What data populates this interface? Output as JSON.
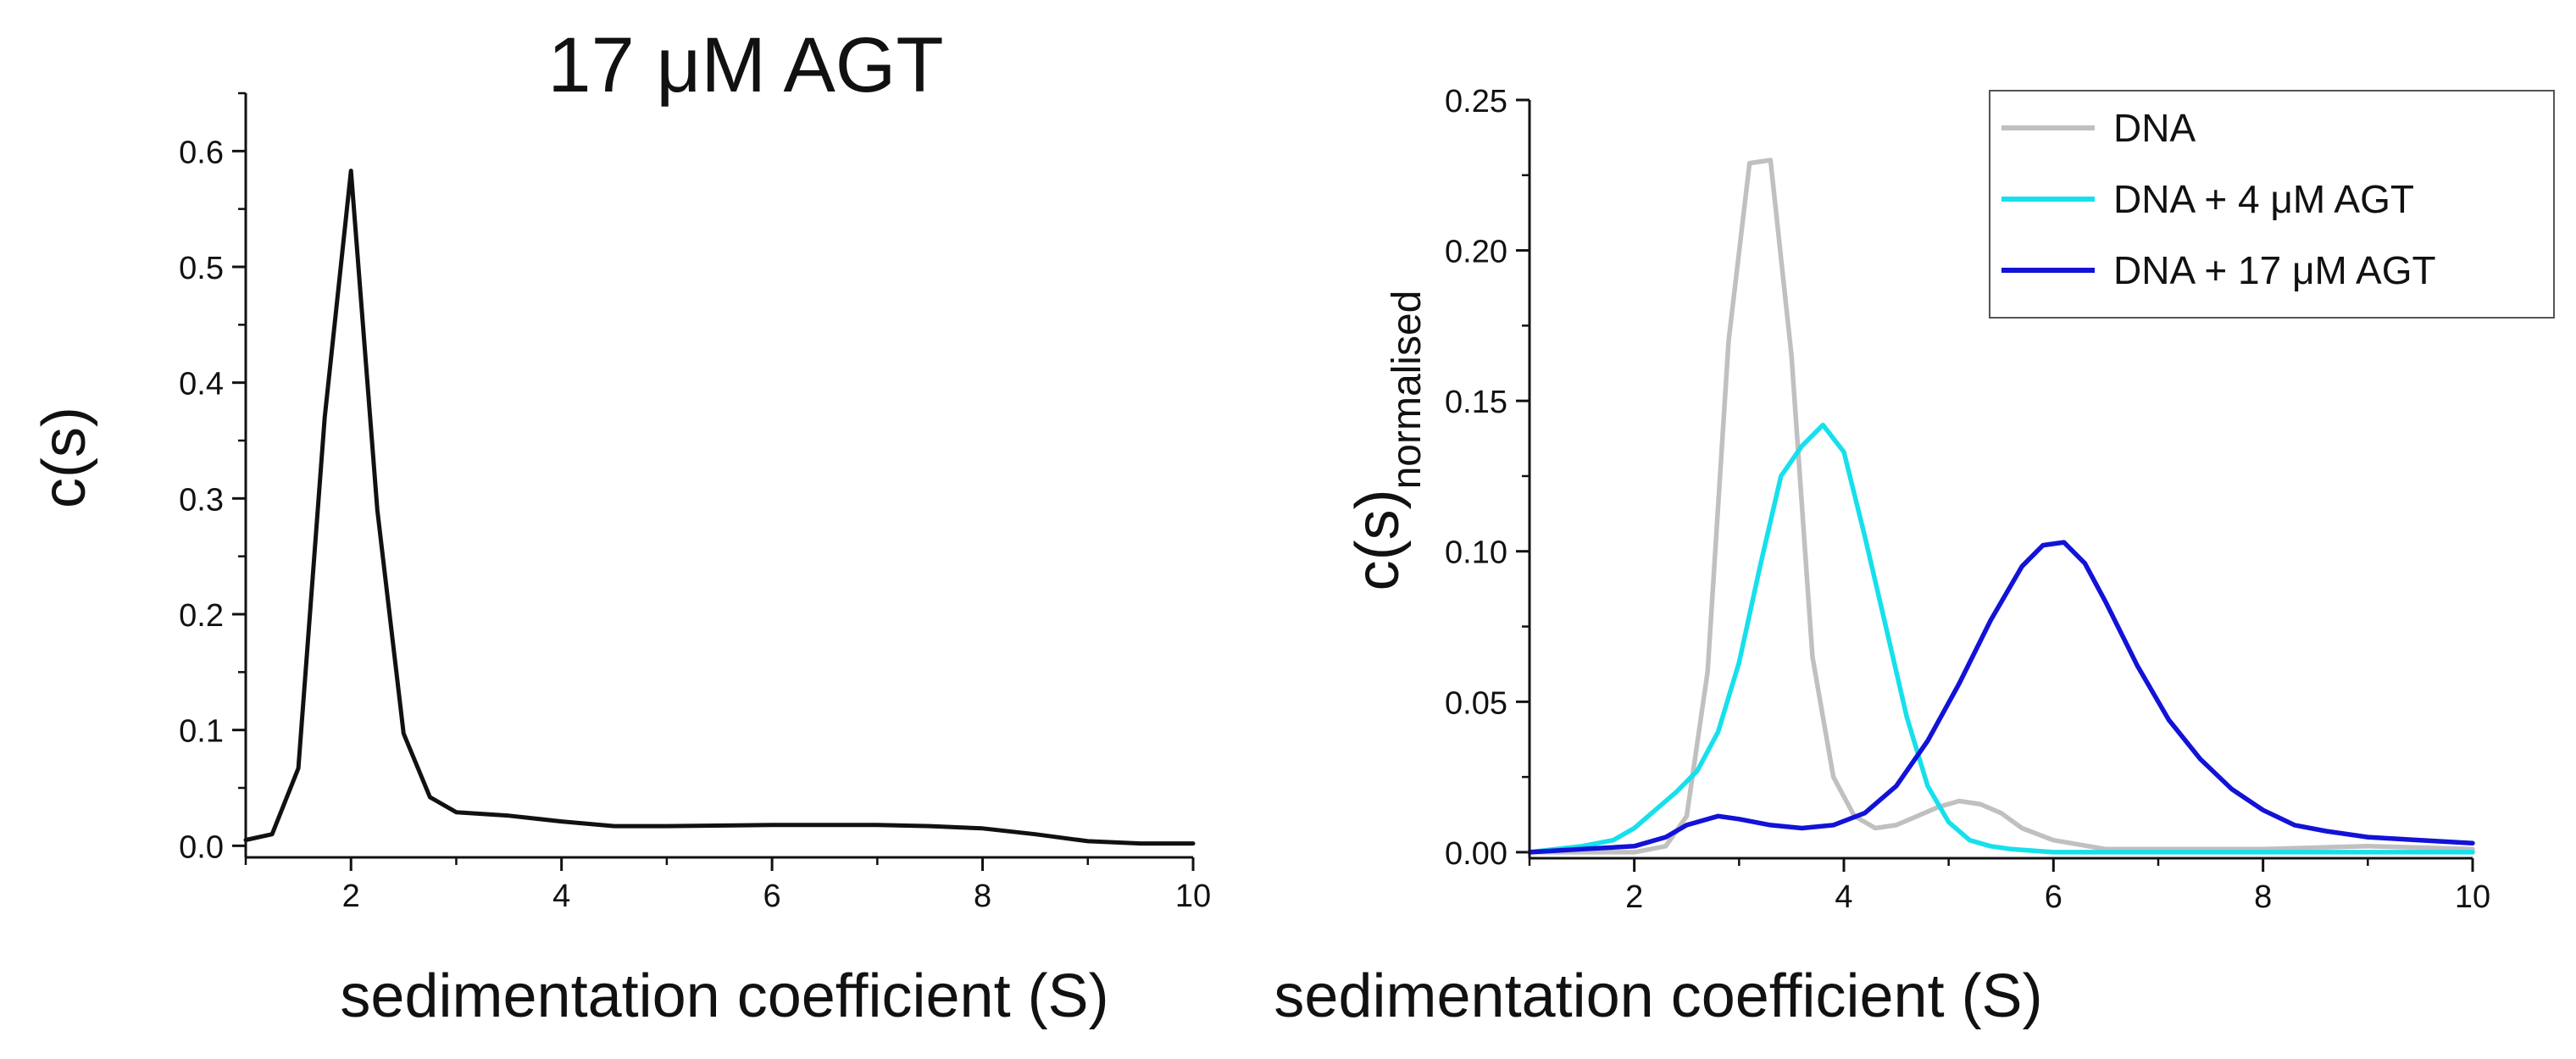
{
  "chart_data": [
    {
      "type": "line",
      "title": "17 μM AGT",
      "xlabel": "sedimentation coefficient (S)",
      "ylabel": "c(s)",
      "xlim": [
        1,
        10
      ],
      "ylim": [
        -0.01,
        0.65
      ],
      "xticks": [
        2,
        4,
        6,
        8,
        10
      ],
      "xtick_labels": [
        "2",
        "4",
        "6",
        "8",
        "10"
      ],
      "yticks": [
        0.0,
        0.1,
        0.2,
        0.3,
        0.4,
        0.5,
        0.6
      ],
      "ytick_labels": [
        "0.0",
        "0.1",
        "0.2",
        "0.3",
        "0.4",
        "0.5",
        "0.6"
      ],
      "grid": false,
      "series": [
        {
          "name": "17 μM AGT",
          "color": "#111111",
          "x": [
            1.0,
            1.25,
            1.5,
            1.75,
            2.0,
            2.25,
            2.5,
            2.75,
            3.0,
            3.5,
            4.0,
            4.5,
            5.0,
            6.0,
            6.5,
            7.0,
            7.5,
            8.0,
            8.5,
            9.0,
            9.5,
            10.0
          ],
          "y": [
            0.005,
            0.01,
            0.067,
            0.37,
            0.583,
            0.29,
            0.097,
            0.042,
            0.029,
            0.026,
            0.021,
            0.017,
            0.017,
            0.018,
            0.018,
            0.018,
            0.017,
            0.015,
            0.01,
            0.004,
            0.002,
            0.002
          ]
        }
      ]
    },
    {
      "type": "line",
      "title": "",
      "xlabel": "sedimentation coefficient (S)",
      "ylabel": "c(s)",
      "ylabel_subscript": "normalised",
      "xlim": [
        1,
        10
      ],
      "ylim": [
        -0.002,
        0.25
      ],
      "xticks": [
        2,
        4,
        6,
        8,
        10
      ],
      "xtick_labels": [
        "2",
        "4",
        "6",
        "8",
        "10"
      ],
      "yticks": [
        0.0,
        0.05,
        0.1,
        0.15,
        0.2,
        0.25
      ],
      "ytick_labels": [
        "0.00",
        "0.05",
        "0.10",
        "0.15",
        "0.20",
        "0.25"
      ],
      "grid": false,
      "legend_position": "top-right",
      "series": [
        {
          "name": "DNA",
          "color": "#c0c0c0",
          "x": [
            1.0,
            1.5,
            2.0,
            2.3,
            2.5,
            2.7,
            2.9,
            3.1,
            3.3,
            3.5,
            3.7,
            3.9,
            4.1,
            4.3,
            4.5,
            4.7,
            4.9,
            5.1,
            5.3,
            5.5,
            5.7,
            6.0,
            6.5,
            7.0,
            8.0,
            9.0,
            10.0
          ],
          "y": [
            0.0,
            0.0,
            0.0,
            0.002,
            0.012,
            0.06,
            0.17,
            0.229,
            0.23,
            0.165,
            0.065,
            0.025,
            0.012,
            0.008,
            0.009,
            0.012,
            0.015,
            0.017,
            0.016,
            0.013,
            0.008,
            0.004,
            0.001,
            0.001,
            0.001,
            0.002,
            0.001
          ]
        },
        {
          "name": "DNA + 4 μM AGT",
          "color": "#16e0ec",
          "x": [
            1.0,
            1.5,
            1.8,
            2.0,
            2.2,
            2.4,
            2.6,
            2.8,
            3.0,
            3.2,
            3.4,
            3.6,
            3.8,
            4.0,
            4.2,
            4.4,
            4.6,
            4.8,
            5.0,
            5.2,
            5.4,
            5.6,
            6.0,
            7.0,
            8.0,
            10.0
          ],
          "y": [
            0.0,
            0.002,
            0.004,
            0.008,
            0.014,
            0.02,
            0.027,
            0.04,
            0.063,
            0.095,
            0.125,
            0.135,
            0.142,
            0.133,
            0.105,
            0.075,
            0.045,
            0.022,
            0.01,
            0.004,
            0.002,
            0.001,
            0.0,
            0.0,
            0.0,
            0.0
          ]
        },
        {
          "name": "DNA + 17 μM AGT",
          "color": "#1212d8",
          "x": [
            1.0,
            1.5,
            2.0,
            2.3,
            2.5,
            2.8,
            3.0,
            3.3,
            3.6,
            3.9,
            4.2,
            4.5,
            4.8,
            5.1,
            5.4,
            5.7,
            5.9,
            6.1,
            6.3,
            6.5,
            6.8,
            7.1,
            7.4,
            7.7,
            8.0,
            8.3,
            8.6,
            9.0,
            9.5,
            10.0
          ],
          "y": [
            0.0,
            0.001,
            0.002,
            0.005,
            0.009,
            0.012,
            0.011,
            0.009,
            0.008,
            0.009,
            0.013,
            0.022,
            0.037,
            0.056,
            0.077,
            0.095,
            0.102,
            0.103,
            0.096,
            0.083,
            0.062,
            0.044,
            0.031,
            0.021,
            0.014,
            0.009,
            0.007,
            0.005,
            0.004,
            0.003
          ]
        }
      ]
    }
  ]
}
